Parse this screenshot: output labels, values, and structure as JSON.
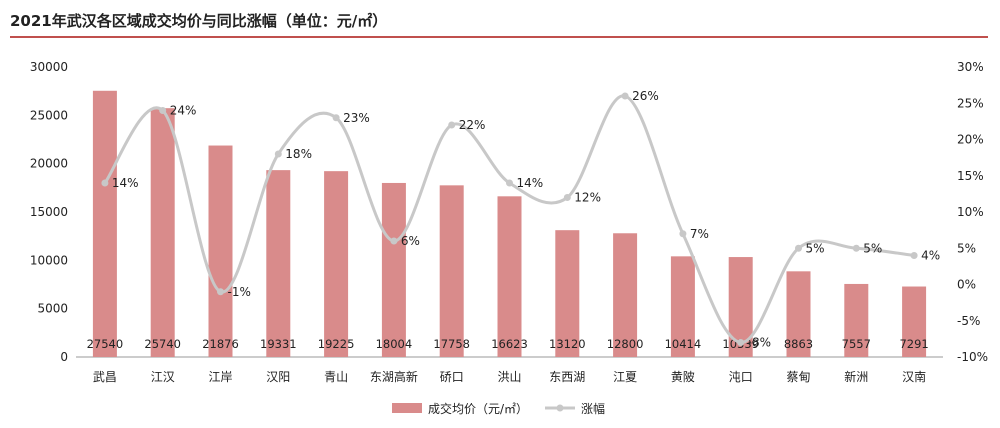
{
  "page": {
    "title": "2021年武汉各区域成交均价与同比涨幅（单位：元/㎡）"
  },
  "chart_data": {
    "type": "bar",
    "title": "2021年武汉各区域成交均价与同比涨幅（单位：元/㎡）",
    "categories": [
      "武昌",
      "江汉",
      "江岸",
      "汉阳",
      "青山",
      "东湖高新",
      "硚口",
      "洪山",
      "东西湖",
      "江夏",
      "黄陂",
      "沌口",
      "蔡甸",
      "新洲",
      "汉南"
    ],
    "series": [
      {
        "name": "成交均价（元/㎡）",
        "type": "bar",
        "axis": "left",
        "values": [
          27540,
          25740,
          21876,
          19331,
          19225,
          18004,
          17758,
          16623,
          13120,
          12800,
          10414,
          10339,
          8863,
          7557,
          7291
        ],
        "labels": [
          "27540",
          "25740",
          "21876",
          "19331",
          "19225",
          "18004",
          "17758",
          "16623",
          "13120",
          "12800",
          "10414",
          "10339",
          "8863",
          "7557",
          "7291"
        ],
        "color": "#d98b8b"
      },
      {
        "name": "涨幅",
        "type": "line",
        "axis": "right",
        "values": [
          14,
          24,
          -1,
          18,
          23,
          6,
          22,
          14,
          12,
          26,
          7,
          -8,
          5,
          5,
          4
        ],
        "labels": [
          "14%",
          "24%",
          "-1%",
          "18%",
          "23%",
          "6%",
          "22%",
          "14%",
          "12%",
          "26%",
          "7%",
          "-8%",
          "5%",
          "5%",
          "4%"
        ],
        "color": "#c8c8c8"
      }
    ],
    "y_left": {
      "range": [
        0,
        30000
      ],
      "ticks": [
        "0",
        "5000",
        "10000",
        "15000",
        "20000",
        "25000",
        "30000"
      ]
    },
    "y_right": {
      "range": [
        -10,
        30
      ],
      "ticks": [
        "-10%",
        "-5%",
        "0%",
        "5%",
        "10%",
        "15%",
        "20%",
        "25%",
        "30%"
      ]
    },
    "grid": false,
    "legend_position": "bottom",
    "accent_color": "#c0504d"
  },
  "legend": {
    "bar": "成交均价（元/㎡）",
    "line": "涨幅"
  }
}
